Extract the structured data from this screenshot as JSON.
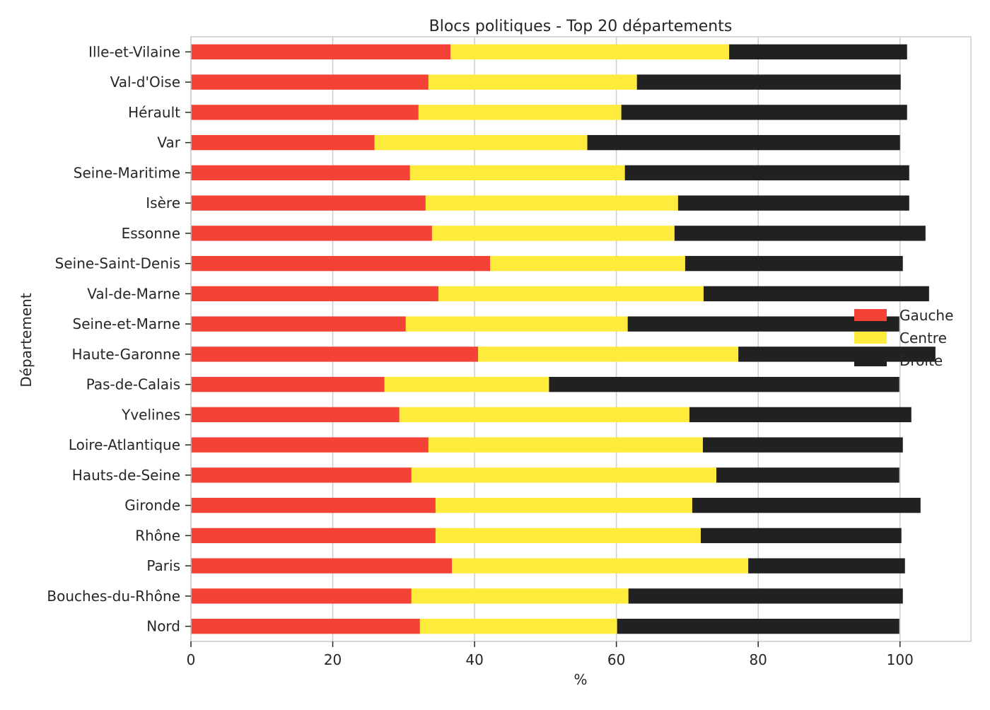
{
  "chart_data": {
    "type": "bar",
    "orientation": "horizontal",
    "stacked": true,
    "title": "Blocs politiques - Top 20 départements",
    "xlabel": "%",
    "ylabel": "Département",
    "xlim": [
      0,
      110
    ],
    "x_ticks": [
      "0",
      "20",
      "40",
      "60",
      "80",
      "100"
    ],
    "grid": true,
    "legend_position": "right",
    "categories": [
      "Ille-et-Vilaine",
      "Val-d'Oise",
      "Hérault",
      "Var",
      "Seine-Maritime",
      "Isère",
      "Essonne",
      "Seine-Saint-Denis",
      "Val-de-Marne",
      "Seine-et-Marne",
      "Haute-Garonne",
      "Pas-de-Calais",
      "Yvelines",
      "Loire-Atlantique",
      "Hauts-de-Seine",
      "Gironde",
      "Rhône",
      "Paris",
      "Bouches-du-Rhône",
      "Nord"
    ],
    "series": [
      {
        "name": "Gauche",
        "color": "#f44336",
        "values": [
          36.6,
          33.5,
          32.1,
          25.9,
          30.9,
          33.1,
          34.0,
          42.2,
          34.9,
          30.3,
          40.5,
          27.3,
          29.4,
          33.5,
          31.1,
          34.5,
          34.5,
          36.8,
          31.1,
          32.3
        ]
      },
      {
        "name": "Centre",
        "color": "#ffeb3b",
        "values": [
          39.3,
          29.4,
          28.6,
          30.0,
          30.3,
          35.6,
          34.2,
          27.5,
          37.4,
          31.3,
          36.7,
          23.2,
          40.9,
          38.7,
          43.0,
          36.2,
          37.4,
          41.8,
          30.6,
          27.8
        ]
      },
      {
        "name": "Droite",
        "color": "#212121",
        "values": [
          25.1,
          37.2,
          40.3,
          44.1,
          40.1,
          32.6,
          35.4,
          30.7,
          31.8,
          38.3,
          27.8,
          49.4,
          31.3,
          28.2,
          25.8,
          32.2,
          28.3,
          22.1,
          38.7,
          39.8
        ]
      }
    ]
  }
}
